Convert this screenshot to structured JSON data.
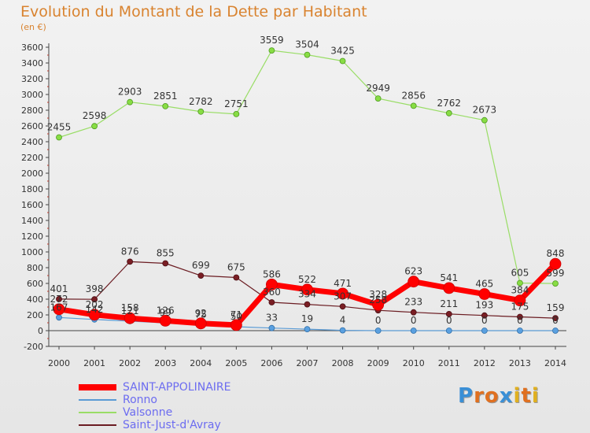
{
  "chart_data": {
    "type": "line",
    "title": "Evolution du Montant de la Dette par Habitant",
    "subtitle": "(en €)",
    "xlabel": "",
    "ylabel": "",
    "ylim": [
      -200,
      3600
    ],
    "yticks": [
      "-200",
      "0",
      "200",
      "400",
      "600",
      "800",
      "1000",
      "1200",
      "1400",
      "1600",
      "1800",
      "2000",
      "2200",
      "2400",
      "2600",
      "2800",
      "3000",
      "3200",
      "3400",
      "3600"
    ],
    "x": [
      "2000",
      "2001",
      "2002",
      "2003",
      "2004",
      "2005",
      "2006",
      "2007",
      "2008",
      "2009",
      "2010",
      "2011",
      "2012",
      "2013",
      "2014"
    ],
    "grid": false,
    "legend_position": "bottom-left",
    "series": [
      {
        "name": "SAINT-APPOLINAIRE",
        "color": "#ff0000",
        "values": [
          272,
          202,
          158,
          126,
          92,
          71,
          586,
          522,
          471,
          328,
          623,
          541,
          465,
          384,
          848
        ],
        "labels": [
          "272",
          "202",
          "158",
          "126",
          "92",
          "71",
          "586",
          "522",
          "471",
          "328",
          "623",
          "541",
          "465",
          "384",
          "848"
        ]
      },
      {
        "name": "Ronno",
        "color": "#5a9bd5",
        "values": [
          167,
          142,
          121,
          99,
          75,
          50,
          33,
          19,
          4,
          0,
          0,
          0,
          0,
          0,
          0
        ],
        "labels": [
          "167",
          "142",
          "121",
          "99",
          "75",
          "50",
          "33",
          "19",
          "4",
          "0",
          "0",
          "0",
          "0",
          "0",
          "0"
        ]
      },
      {
        "name": "Valsonne",
        "color": "#99dd66",
        "values": [
          2455,
          2598,
          2903,
          2851,
          2782,
          2751,
          3559,
          3504,
          3425,
          2949,
          2856,
          2762,
          2673,
          605,
          599
        ],
        "labels": [
          "2455",
          "2598",
          "2903",
          "2851",
          "2782",
          "2751",
          "3559",
          "3504",
          "3425",
          "2949",
          "2856",
          "2762",
          "2673",
          "605",
          "599"
        ]
      },
      {
        "name": "Saint-Just-d'Avray",
        "color": "#6b1c22",
        "values": [
          401,
          398,
          876,
          855,
          699,
          675,
          360,
          334,
          307,
          258,
          233,
          211,
          193,
          175,
          159
        ],
        "labels": [
          "401",
          "398",
          "876",
          "855",
          "699",
          "675",
          "360",
          "334",
          "307",
          "258",
          "233",
          "211",
          "193",
          "175",
          "159"
        ]
      }
    ]
  },
  "logo": {
    "letters": [
      "P",
      "r",
      "o",
      "x",
      "i",
      "t",
      "i"
    ],
    "colors": [
      "#3a8fd6",
      "#e07020",
      "#e07020",
      "#3a8fd6",
      "#e0b020",
      "#e07020",
      "#e0b020"
    ]
  }
}
